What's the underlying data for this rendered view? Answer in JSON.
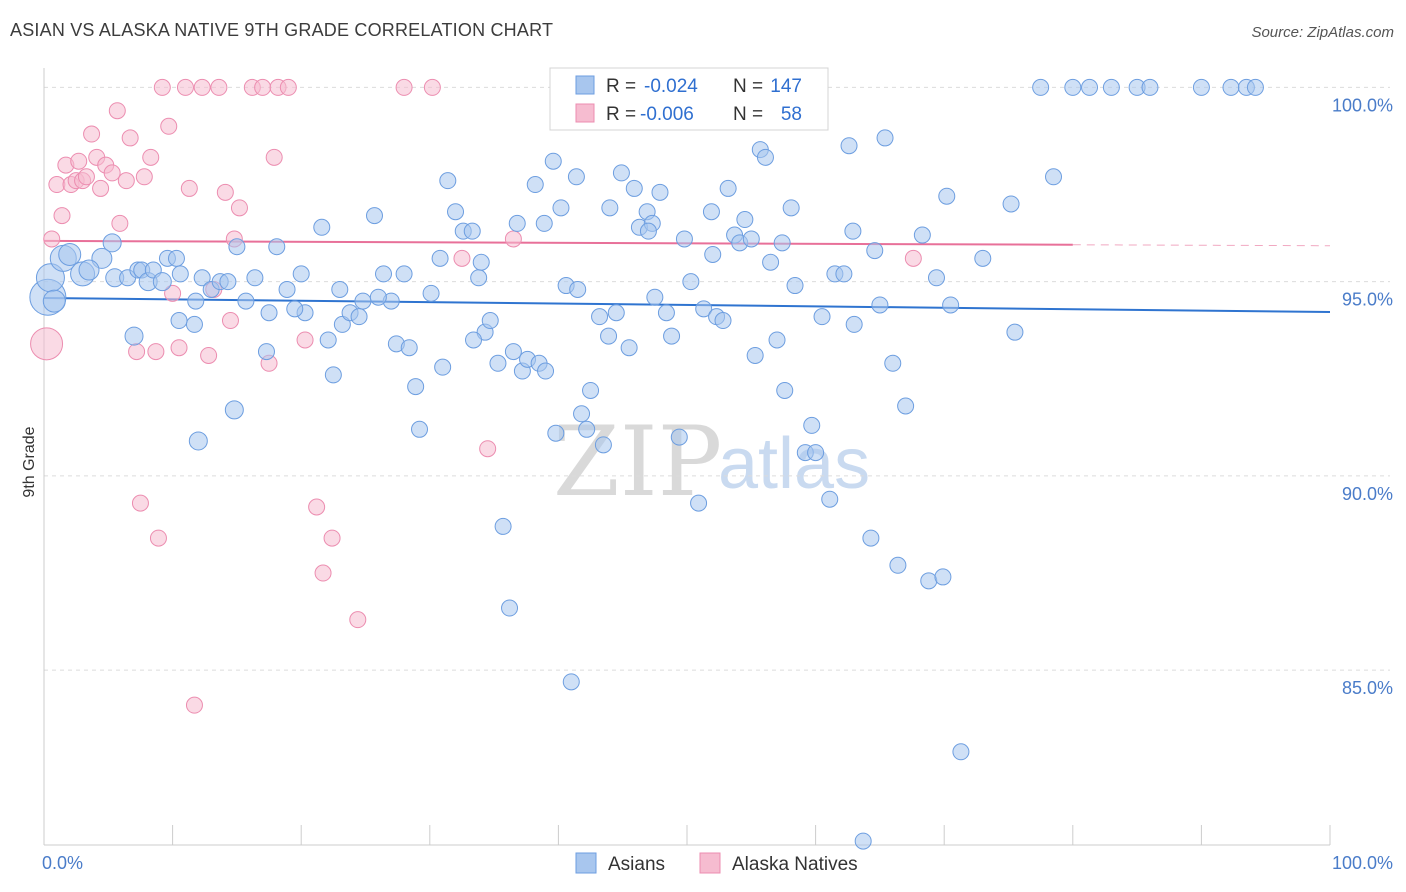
{
  "header": {
    "title": "ASIAN VS ALASKA NATIVE 9TH GRADE CORRELATION CHART",
    "source": "Source: ZipAtlas.com"
  },
  "watermark": {
    "zip": "ZIP",
    "atlas": "atlas"
  },
  "colors": {
    "asian_fill": "#a8c6ee",
    "asian_stroke": "#6d9ee0",
    "asian_line": "#2f74d0",
    "native_fill": "#f6bcd0",
    "native_stroke": "#ec8db0",
    "native_line": "#e87099",
    "grid": "#dcdcdc",
    "tick_text": "#4a7cc9"
  },
  "legend": {
    "asian": {
      "r_label": "R =",
      "r_value": "-0.024",
      "n_label": "N =",
      "n_value": "147"
    },
    "native": {
      "r_label": "R =",
      "r_value": "-0.006",
      "n_label": "N =",
      "n_value": "58"
    }
  },
  "chart_data": {
    "type": "scatter",
    "title": "ASIAN VS ALASKA NATIVE 9TH GRADE CORRELATION CHART",
    "xlabel": "",
    "ylabel": "9th Grade",
    "xlim": [
      0,
      100
    ],
    "ylim": [
      80.5,
      100.5
    ],
    "x_tick_labels": [
      "0.0%",
      "100.0%"
    ],
    "y_ticks": [
      100,
      95,
      90,
      85
    ],
    "y_tick_labels": [
      "100.0%",
      "95.0%",
      "90.0%",
      "85.0%"
    ],
    "grid": true,
    "legend_position": "top-center",
    "series": [
      {
        "name": "Asians",
        "trend": {
          "x": [
            0,
            100
          ],
          "y": [
            94.58,
            94.22
          ]
        },
        "points": [
          [
            0.3,
            94.6,
            18
          ],
          [
            0.5,
            95.1,
            14
          ],
          [
            1.5,
            95.6,
            13
          ],
          [
            2.0,
            95.7,
            11
          ],
          [
            3.0,
            95.2,
            12
          ],
          [
            4.5,
            95.6,
            10
          ],
          [
            5.5,
            95.1,
            9
          ],
          [
            5.3,
            96.0,
            9
          ],
          [
            6.5,
            95.1,
            8
          ],
          [
            7.3,
            95.3,
            8
          ],
          [
            7.6,
            95.3,
            8
          ],
          [
            8.1,
            95.0,
            9
          ],
          [
            8.5,
            95.3,
            8
          ],
          [
            9.2,
            95.0,
            9
          ],
          [
            9.6,
            95.6,
            8
          ],
          [
            10.3,
            95.6,
            8
          ],
          [
            10.6,
            95.2,
            8
          ],
          [
            11.8,
            94.5,
            8
          ],
          [
            11.7,
            93.9,
            8
          ],
          [
            12.3,
            95.1,
            8
          ],
          [
            13.0,
            94.8,
            8
          ],
          [
            13.7,
            95.0,
            8
          ],
          [
            14.3,
            95.0,
            8
          ],
          [
            15.0,
            95.9,
            8
          ],
          [
            15.7,
            94.5,
            8
          ],
          [
            16.4,
            95.1,
            8
          ],
          [
            17.3,
            93.2,
            8
          ],
          [
            17.5,
            94.2,
            8
          ],
          [
            18.1,
            95.9,
            8
          ],
          [
            18.9,
            94.8,
            8
          ],
          [
            20.0,
            95.2,
            8
          ],
          [
            20.3,
            94.2,
            8
          ],
          [
            21.6,
            96.4,
            8
          ],
          [
            22.1,
            93.5,
            8
          ],
          [
            22.5,
            92.6,
            8
          ],
          [
            23.0,
            94.8,
            8
          ],
          [
            23.2,
            93.9,
            8
          ],
          [
            23.8,
            94.2,
            8
          ],
          [
            24.5,
            94.1,
            8
          ],
          [
            24.8,
            94.5,
            8
          ],
          [
            25.7,
            96.7,
            8
          ],
          [
            26.4,
            95.2,
            8
          ],
          [
            27.0,
            94.5,
            8
          ],
          [
            27.4,
            93.4,
            8
          ],
          [
            28.0,
            95.2,
            8
          ],
          [
            28.4,
            93.3,
            8
          ],
          [
            28.9,
            92.3,
            8
          ],
          [
            29.2,
            91.2,
            8
          ],
          [
            30.1,
            94.7,
            8
          ],
          [
            30.8,
            95.6,
            8
          ],
          [
            31.0,
            92.8,
            8
          ],
          [
            31.4,
            97.6,
            8
          ],
          [
            32.0,
            96.8,
            8
          ],
          [
            32.6,
            96.3,
            8
          ],
          [
            33.3,
            96.3,
            8
          ],
          [
            33.8,
            95.1,
            8
          ],
          [
            34.3,
            93.7,
            8
          ],
          [
            34.7,
            94.0,
            8
          ],
          [
            35.3,
            92.9,
            8
          ],
          [
            35.7,
            88.7,
            8
          ],
          [
            36.2,
            86.6,
            8
          ],
          [
            36.8,
            96.5,
            8
          ],
          [
            37.2,
            92.7,
            8
          ],
          [
            37.6,
            93.0,
            8
          ],
          [
            38.2,
            97.5,
            8
          ],
          [
            38.5,
            92.9,
            8
          ],
          [
            38.9,
            96.5,
            8
          ],
          [
            39.6,
            98.1,
            8
          ],
          [
            40.2,
            96.9,
            8
          ],
          [
            40.6,
            94.9,
            8
          ],
          [
            41.0,
            84.7,
            8
          ],
          [
            41.4,
            97.7,
            8
          ],
          [
            41.8,
            91.6,
            8
          ],
          [
            42.2,
            91.2,
            8
          ],
          [
            43.2,
            94.1,
            8
          ],
          [
            43.5,
            90.8,
            8
          ],
          [
            43.9,
            93.6,
            8
          ],
          [
            44.5,
            94.2,
            8
          ],
          [
            44.9,
            97.8,
            8
          ],
          [
            45.5,
            93.3,
            8
          ],
          [
            45.9,
            97.4,
            8
          ],
          [
            46.3,
            96.4,
            8
          ],
          [
            46.9,
            96.8,
            8
          ],
          [
            47.3,
            96.5,
            8
          ],
          [
            47.9,
            97.3,
            8
          ],
          [
            48.4,
            94.2,
            8
          ],
          [
            48.8,
            93.6,
            8
          ],
          [
            49.4,
            91.0,
            8
          ],
          [
            49.8,
            96.1,
            8
          ],
          [
            50.3,
            95.0,
            8
          ],
          [
            50.9,
            89.3,
            8
          ],
          [
            51.3,
            94.3,
            8
          ],
          [
            51.9,
            96.8,
            8
          ],
          [
            52.3,
            94.1,
            8
          ],
          [
            52.8,
            94.0,
            8
          ],
          [
            53.2,
            97.4,
            8
          ],
          [
            53.7,
            96.2,
            8
          ],
          [
            54.1,
            96.0,
            8
          ],
          [
            54.5,
            96.6,
            8
          ],
          [
            55.0,
            96.1,
            8
          ],
          [
            55.3,
            93.1,
            8
          ],
          [
            55.7,
            98.4,
            8
          ],
          [
            56.1,
            98.2,
            8
          ],
          [
            57.0,
            93.5,
            8
          ],
          [
            57.6,
            92.2,
            8
          ],
          [
            58.1,
            96.9,
            8
          ],
          [
            58.4,
            94.9,
            8
          ],
          [
            59.2,
            90.6,
            8
          ],
          [
            59.7,
            91.3,
            8
          ],
          [
            60.0,
            90.6,
            8
          ],
          [
            60.5,
            94.1,
            8
          ],
          [
            61.1,
            89.4,
            8
          ],
          [
            61.5,
            95.2,
            8
          ],
          [
            62.2,
            95.2,
            8
          ],
          [
            62.6,
            98.5,
            8
          ],
          [
            64.3,
            88.4,
            8
          ],
          [
            64.6,
            95.8,
            8
          ],
          [
            65.0,
            94.4,
            8
          ],
          [
            65.4,
            98.7,
            8
          ],
          [
            66.4,
            87.7,
            8
          ],
          [
            67.0,
            91.8,
            8
          ],
          [
            68.3,
            96.2,
            8
          ],
          [
            68.8,
            87.3,
            8
          ],
          [
            69.4,
            95.1,
            8
          ],
          [
            69.9,
            87.4,
            8
          ],
          [
            70.2,
            97.2,
            8
          ],
          [
            71.3,
            82.9,
            8
          ],
          [
            75.2,
            97.0,
            8
          ],
          [
            77.5,
            100.0,
            8
          ],
          [
            78.5,
            97.7,
            8
          ],
          [
            80.0,
            100.0,
            8
          ],
          [
            81.3,
            100.0,
            8
          ],
          [
            83.0,
            100.0,
            8
          ],
          [
            85.0,
            100.0,
            8
          ],
          [
            86.0,
            100.0,
            8
          ],
          [
            90.0,
            100.0,
            8
          ],
          [
            92.3,
            100.0,
            8
          ],
          [
            93.5,
            100.0,
            8
          ],
          [
            94.2,
            100.0,
            8
          ],
          [
            63.7,
            80.6,
            8
          ],
          [
            0.8,
            94.5,
            11
          ],
          [
            3.5,
            95.3,
            10
          ],
          [
            7.0,
            93.6,
            9
          ],
          [
            10.5,
            94.0,
            8
          ],
          [
            14.8,
            91.7,
            9
          ],
          [
            12.0,
            90.9,
            9
          ],
          [
            19.5,
            94.3,
            8
          ],
          [
            26.0,
            94.6,
            8
          ],
          [
            34.0,
            95.5,
            8
          ],
          [
            36.5,
            93.2,
            8
          ],
          [
            39.0,
            92.7,
            8
          ],
          [
            41.5,
            94.8,
            8
          ],
          [
            42.5,
            92.2,
            8
          ],
          [
            44.0,
            96.9,
            8
          ],
          [
            47.5,
            94.6,
            8
          ],
          [
            52.0,
            95.7,
            8
          ],
          [
            56.5,
            95.5,
            8
          ],
          [
            63.0,
            93.9,
            8
          ],
          [
            66.0,
            92.9,
            8
          ],
          [
            70.5,
            94.4,
            8
          ],
          [
            73.0,
            95.6,
            8
          ],
          [
            75.5,
            93.7,
            8
          ],
          [
            57.4,
            96.0,
            8
          ],
          [
            62.9,
            96.3,
            8
          ],
          [
            47.0,
            96.3,
            8
          ],
          [
            39.8,
            91.1,
            8
          ],
          [
            33.4,
            93.5,
            8
          ]
        ]
      },
      {
        "name": "Alaska Natives",
        "trend": {
          "x": [
            0,
            80
          ],
          "y": [
            96.05,
            95.95
          ],
          "dashed_to": [
            80,
            100
          ]
        },
        "points": [
          [
            0.2,
            93.4,
            16
          ],
          [
            0.6,
            96.1,
            8
          ],
          [
            1.0,
            97.5,
            8
          ],
          [
            1.4,
            96.7,
            8
          ],
          [
            1.7,
            98.0,
            8
          ],
          [
            2.1,
            97.5,
            8
          ],
          [
            2.5,
            97.6,
            8
          ],
          [
            2.7,
            98.1,
            8
          ],
          [
            3.0,
            97.6,
            8
          ],
          [
            3.3,
            97.7,
            8
          ],
          [
            3.7,
            98.8,
            8
          ],
          [
            4.1,
            98.2,
            8
          ],
          [
            4.4,
            97.4,
            8
          ],
          [
            4.8,
            98.0,
            8
          ],
          [
            5.3,
            97.8,
            8
          ],
          [
            5.7,
            99.4,
            8
          ],
          [
            5.9,
            96.5,
            8
          ],
          [
            6.4,
            97.6,
            8
          ],
          [
            6.7,
            98.7,
            8
          ],
          [
            7.2,
            93.2,
            8
          ],
          [
            7.5,
            89.3,
            8
          ],
          [
            7.8,
            97.7,
            8
          ],
          [
            8.3,
            98.2,
            8
          ],
          [
            8.7,
            93.2,
            8
          ],
          [
            8.9,
            88.4,
            8
          ],
          [
            9.2,
            100.0,
            8
          ],
          [
            9.7,
            99.0,
            8
          ],
          [
            10.0,
            94.7,
            8
          ],
          [
            10.5,
            93.3,
            8
          ],
          [
            11.0,
            100.0,
            8
          ],
          [
            11.3,
            97.4,
            8
          ],
          [
            11.7,
            84.1,
            8
          ],
          [
            12.3,
            100.0,
            8
          ],
          [
            12.8,
            93.1,
            8
          ],
          [
            13.2,
            94.8,
            8
          ],
          [
            13.6,
            100.0,
            8
          ],
          [
            14.1,
            97.3,
            8
          ],
          [
            14.5,
            94.0,
            8
          ],
          [
            14.8,
            96.1,
            8
          ],
          [
            15.2,
            96.9,
            8
          ],
          [
            16.2,
            100.0,
            8
          ],
          [
            17.0,
            100.0,
            8
          ],
          [
            17.5,
            92.9,
            8
          ],
          [
            17.9,
            98.2,
            8
          ],
          [
            18.2,
            100.0,
            8
          ],
          [
            19.0,
            100.0,
            8
          ],
          [
            20.3,
            93.5,
            8
          ],
          [
            21.2,
            89.2,
            8
          ],
          [
            21.7,
            87.5,
            8
          ],
          [
            22.4,
            88.4,
            8
          ],
          [
            24.4,
            86.3,
            8
          ],
          [
            28.0,
            100.0,
            8
          ],
          [
            30.2,
            100.0,
            8
          ],
          [
            32.5,
            95.6,
            8
          ],
          [
            34.5,
            90.7,
            8
          ],
          [
            36.5,
            96.1,
            8
          ],
          [
            43.0,
            100.0,
            8
          ],
          [
            67.6,
            95.6,
            8
          ]
        ]
      }
    ]
  },
  "bottom_legend": [
    {
      "label": "Asians"
    },
    {
      "label": "Alaska Natives"
    }
  ]
}
